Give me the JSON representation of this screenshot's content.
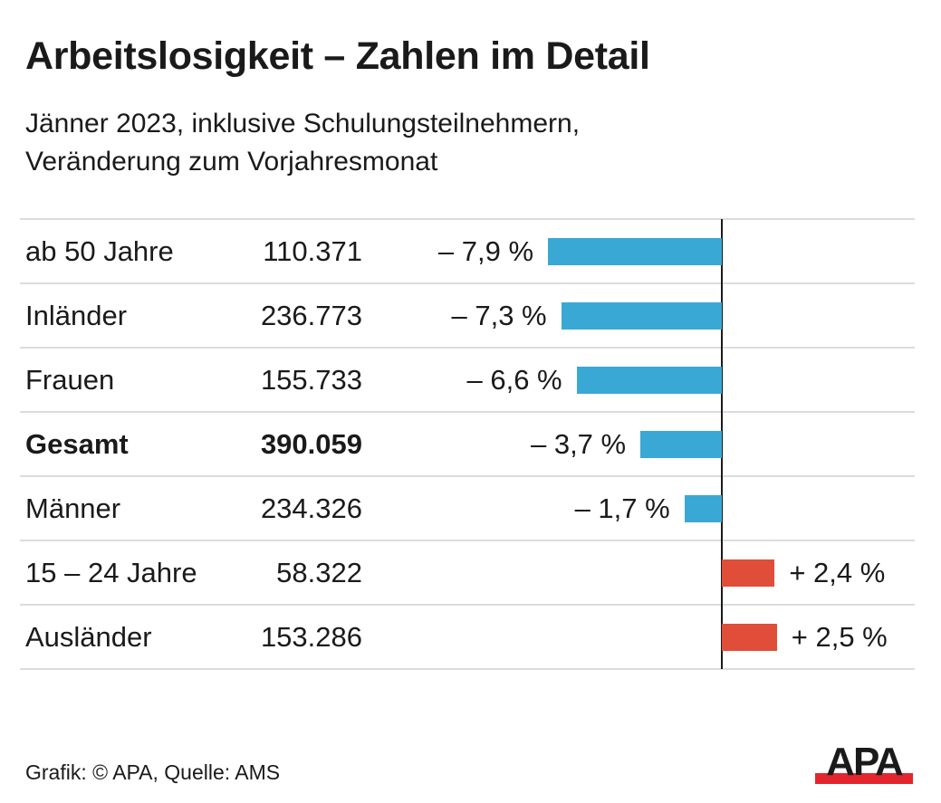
{
  "chart_data": {
    "type": "bar",
    "orientation": "horizontal",
    "title": "Arbeitslosigkeit – Zahlen im Detail",
    "subtitle_lines": [
      "Jänner 2023, inklusive Schulungsteilnehmern,",
      "Veränderung zum Vorjahresmonat"
    ],
    "categories": [
      "ab 50 Jahre",
      "Inländer",
      "Frauen",
      "Gesamt",
      "Männer",
      "15 – 24 Jahre",
      "Ausländer"
    ],
    "counts": [
      "110.371",
      "236.773",
      "155.733",
      "390.059",
      "234.326",
      "58.322",
      "153.286"
    ],
    "values": [
      -7.9,
      -7.3,
      -6.6,
      -3.7,
      -1.7,
      2.4,
      2.5
    ],
    "value_labels": [
      "– 7,9 %",
      "– 7,3 %",
      "– 6,6 %",
      "– 3,7 %",
      "– 1,7 %",
      "+ 2,4 %",
      "+ 2,5 %"
    ],
    "highlighted_category": "Gesamt",
    "unit": "%",
    "grid": "horizontal row separators",
    "colors": {
      "negative": "#3aa8d5",
      "positive": "#e04e39",
      "axis": "#1a1a1a",
      "separator": "#dcdcdc"
    }
  },
  "footer": {
    "source": "Grafik: © APA, Quelle: AMS"
  },
  "logo": {
    "text": "APA",
    "colors": {
      "letters": "#1a1a1a",
      "bar": "#e3262e"
    }
  }
}
